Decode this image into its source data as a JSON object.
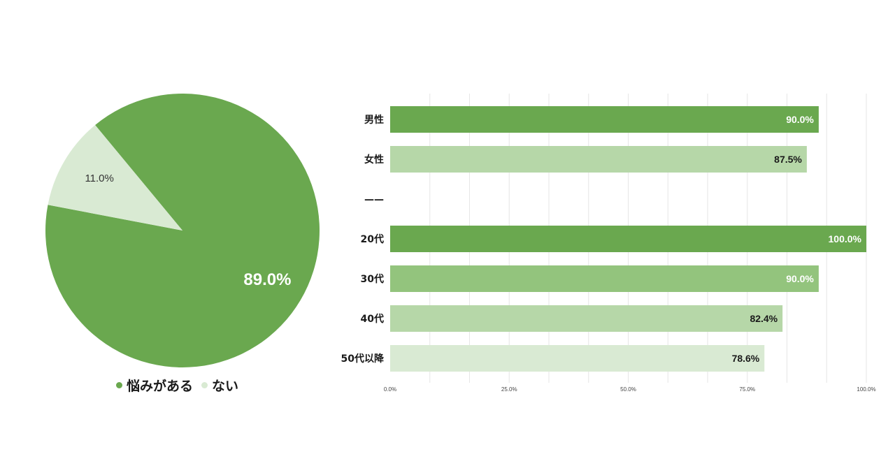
{
  "chart_data": [
    {
      "type": "pie",
      "slices": [
        {
          "label": "悩みがある",
          "value": 89.0,
          "display": "89.0%",
          "color": "#6aa84f",
          "label_color": "#ffffff"
        },
        {
          "label": "ない",
          "value": 11.0,
          "display": "11.0%",
          "color": "#d9ead3",
          "label_color": "#333333"
        }
      ],
      "legend": "bottom"
    },
    {
      "type": "bar",
      "orientation": "horizontal",
      "categories": [
        "男性",
        "女性",
        "——",
        "20代",
        "30代",
        "40代",
        "50代以降"
      ],
      "values": [
        90.0,
        87.5,
        null,
        100.0,
        90.0,
        82.4,
        78.6
      ],
      "value_labels": [
        "90.0%",
        "87.5%",
        "",
        "100.0%",
        "90.0%",
        "82.4%",
        "78.6%"
      ],
      "bar_colors": [
        "#6aa84f",
        "#b6d7a8",
        "",
        "#6aa84f",
        "#93c47d",
        "#b6d7a8",
        "#d9ead3"
      ],
      "label_colors": [
        "#ffffff",
        "#1a1a1a",
        "",
        "#ffffff",
        "#ffffff",
        "#1a1a1a",
        "#1a1a1a"
      ],
      "xlim": [
        0,
        100
      ],
      "x_ticks": [
        "0.0%",
        "25.0%",
        "50.0%",
        "75.0%",
        "100.0%"
      ],
      "grid": true
    }
  ]
}
